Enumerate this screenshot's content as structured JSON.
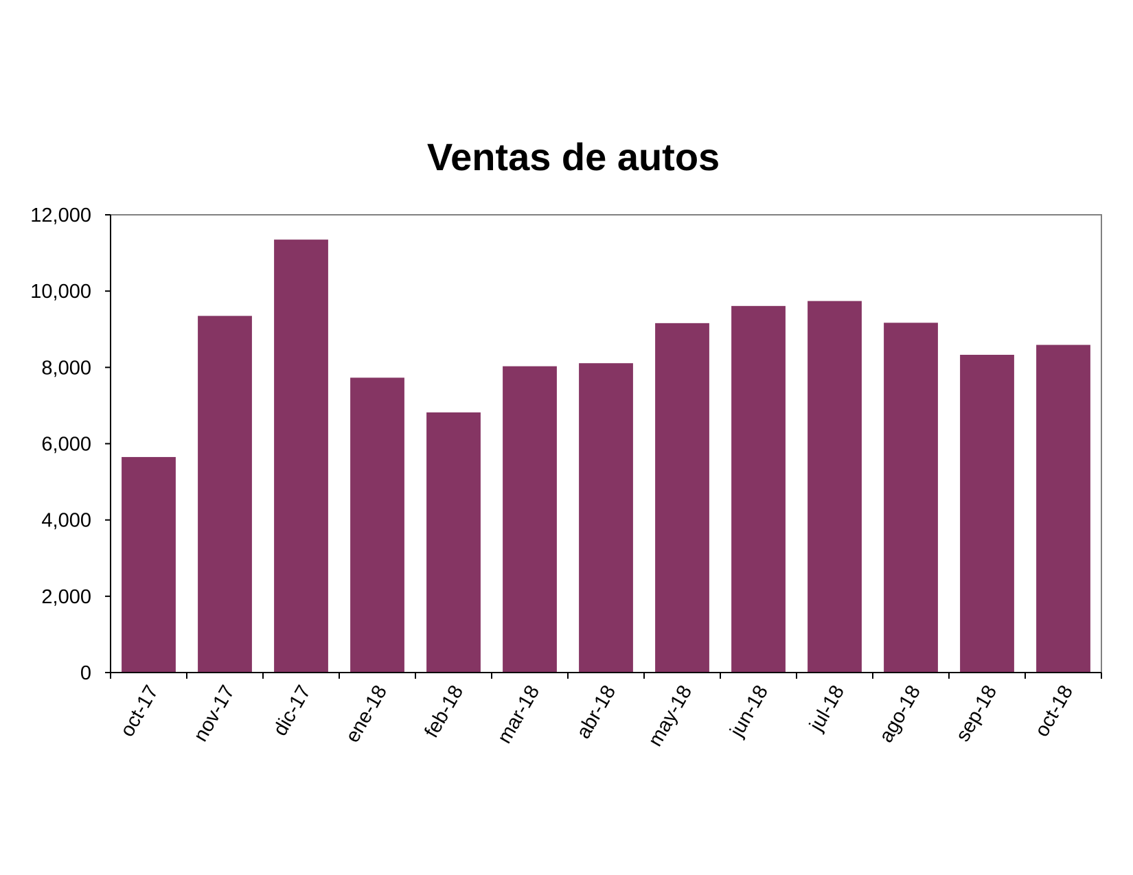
{
  "chart_data": {
    "type": "bar",
    "title": "Ventas de autos",
    "xlabel": "",
    "ylabel": "",
    "categories": [
      "oct-17",
      "nov-17",
      "dic-17",
      "ene-18",
      "feb-18",
      "mar-18",
      "abr-18",
      "may-18",
      "jun-18",
      "jul-18",
      "ago-18",
      "sep-18",
      "oct-18"
    ],
    "values": [
      5650,
      9350,
      11350,
      7730,
      6820,
      8030,
      8110,
      9160,
      9610,
      9740,
      9170,
      8330,
      8590
    ],
    "ylim": [
      0,
      12000
    ],
    "yticks": [
      0,
      2000,
      4000,
      6000,
      8000,
      10000,
      12000
    ],
    "ytick_labels": [
      "0",
      "2,000",
      "4,000",
      "6,000",
      "8,000",
      "10,000",
      "12,000"
    ],
    "grid": false,
    "legend": "none",
    "bar_color": "#853563",
    "frame_color": "#808080"
  }
}
